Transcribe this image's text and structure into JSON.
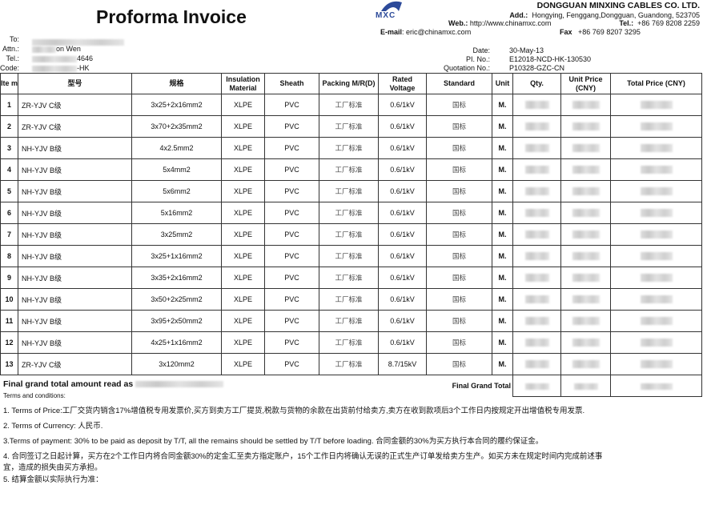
{
  "title": "Proforma Invoice",
  "customer": {
    "to_label": "To:",
    "attn_label": "Attn.:",
    "attn_value": "on Wen",
    "tel_label": "Tel.:",
    "tel_value": "4646",
    "code_label": "Code:",
    "code_value": "-HK"
  },
  "company": {
    "logo_text": "MXC",
    "name": "DONGGUAN MINXING CABLES CO. LTD.",
    "add_label": "Add.:",
    "add_value": "Hongying, Fenggang,Dongguan, Guandong, 523705",
    "web_label": "Web.:",
    "web_value": "http://www.chinamxc.com",
    "tel_label": "Tel.:",
    "tel_value": "+86 769 8208 2259",
    "email_label": "E-mail",
    "email_value": "eric@chinamxc.com",
    "fax_label": "Fax",
    "fax_value": "+86 769 8207 3295"
  },
  "meta": {
    "date_label": "Date:",
    "date_value": "30-May-13",
    "pi_label": "PI. No.:",
    "pi_value": "E12018-NCD-HK-130530",
    "quote_label": "Quotation No.:",
    "quote_value": "P10328-GZC-CN"
  },
  "table": {
    "headers": [
      "Ite m",
      "型号",
      "规格",
      "Insulation Material",
      "Sheath",
      "Packing M/R(D)",
      "Rated Voltage",
      "Standard",
      "Unit",
      "Qty.",
      "Unit Price (CNY)",
      "Total Price (CNY)"
    ],
    "rows": [
      [
        "1",
        "ZR-YJV C级",
        "3x25+2x16mm2",
        "XLPE",
        "PVC",
        "工厂标准",
        "0.6/1kV",
        "国标",
        "M."
      ],
      [
        "2",
        "ZR-YJV C级",
        "3x70+2x35mm2",
        "XLPE",
        "PVC",
        "工厂标准",
        "0.6/1kV",
        "国标",
        "M."
      ],
      [
        "3",
        "NH-YJV B级",
        "4x2.5mm2",
        "XLPE",
        "PVC",
        "工厂标准",
        "0.6/1kV",
        "国标",
        "M."
      ],
      [
        "4",
        "NH-YJV B级",
        "5x4mm2",
        "XLPE",
        "PVC",
        "工厂标准",
        "0.6/1kV",
        "国标",
        "M."
      ],
      [
        "5",
        "NH-YJV B级",
        "5x6mm2",
        "XLPE",
        "PVC",
        "工厂标准",
        "0.6/1kV",
        "国标",
        "M."
      ],
      [
        "6",
        "NH-YJV B级",
        "5x16mm2",
        "XLPE",
        "PVC",
        "工厂标准",
        "0.6/1kV",
        "国标",
        "M."
      ],
      [
        "7",
        "NH-YJV B级",
        "3x25mm2",
        "XLPE",
        "PVC",
        "工厂标准",
        "0.6/1kV",
        "国标",
        "M."
      ],
      [
        "8",
        "NH-YJV B级",
        "3x25+1x16mm2",
        "XLPE",
        "PVC",
        "工厂标准",
        "0.6/1kV",
        "国标",
        "M."
      ],
      [
        "9",
        "NH-YJV B级",
        "3x35+2x16mm2",
        "XLPE",
        "PVC",
        "工厂标准",
        "0.6/1kV",
        "国标",
        "M."
      ],
      [
        "10",
        "NH-YJV B级",
        "3x50+2x25mm2",
        "XLPE",
        "PVC",
        "工厂标准",
        "0.6/1kV",
        "国标",
        "M."
      ],
      [
        "11",
        "NH-YJV B级",
        "3x95+2x50mm2",
        "XLPE",
        "PVC",
        "工厂标准",
        "0.6/1kV",
        "国标",
        "M."
      ],
      [
        "12",
        "NH-YJV B级",
        "4x25+1x16mm2",
        "XLPE",
        "PVC",
        "工厂标准",
        "0.6/1kV",
        "国标",
        "M."
      ],
      [
        "13",
        "ZR-YJV C级",
        "3x120mm2",
        "XLPE",
        "PVC",
        "工厂标准",
        "8.7/15kV",
        "国标",
        "M."
      ]
    ],
    "final_total_label": "Final Grand Total"
  },
  "amount_read_label": "Final grand total amount read as",
  "terms": {
    "heading": "Terms and conditions:",
    "items": [
      "1. Terms of Price:工厂交货内销含17%增值税专用发票价,买方到卖方工厂提货,税款与货物的余款在出货前付给卖方,卖方在收到款项后3个工作日内按规定开出增值税专用发票.",
      "2. Terms of Currency: 人民币.",
      "3.Terms of payment: 30% to be paid as deposit by T/T, all the remains should be settled by T/T before loading. 合同金额的30%为买方执行本合同的履约保证金。",
      "4. 合同签订之日起计算，买方在2个工作日内将合同金额30%的定金汇至卖方指定账户，15个工作日内将确认无误的正式生产订单发给卖方生产。如买方未在规定时间内完成前述事",
      "宜，造成的损失由买方承担。",
      "5. 结算金额以实际执行为准："
    ]
  }
}
